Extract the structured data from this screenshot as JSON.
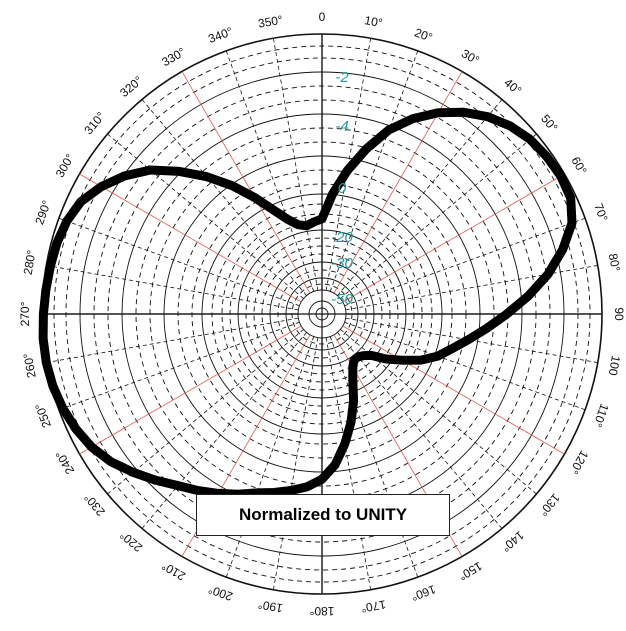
{
  "chart_data": {
    "type": "polar-line",
    "angle_labels": [
      "0",
      "10°",
      "20°",
      "30°",
      "40°",
      "50°",
      "60°",
      "70°",
      "80°",
      "90",
      "100",
      "110°",
      "120°",
      "130°",
      "140°",
      "150°",
      "160°",
      "170°",
      "180°",
      "190°",
      "200°",
      "210°",
      "220°",
      "230°",
      "240°",
      "250°",
      "260°",
      "270°",
      "280°",
      "290°",
      "300°",
      "310°",
      "320°",
      "330°",
      "340°",
      "350°"
    ],
    "radial_labels": [
      "-2",
      "-4",
      "0",
      "-20",
      "-30",
      "-50"
    ],
    "annotation": "Normalized to UNITY",
    "series": [
      {
        "points": [
          [
            0,
            0.34
          ],
          [
            5,
            0.43
          ],
          [
            10,
            0.52
          ],
          [
            15,
            0.61
          ],
          [
            20,
            0.7
          ],
          [
            25,
            0.77
          ],
          [
            30,
            0.83
          ],
          [
            35,
            0.88
          ],
          [
            40,
            0.92
          ],
          [
            45,
            0.95
          ],
          [
            50,
            0.97
          ],
          [
            55,
            0.98
          ],
          [
            60,
            0.985
          ],
          [
            65,
            0.98
          ],
          [
            70,
            0.95
          ],
          [
            75,
            0.89
          ],
          [
            80,
            0.82
          ],
          [
            85,
            0.74
          ],
          [
            90,
            0.66
          ],
          [
            95,
            0.59
          ],
          [
            100,
            0.53
          ],
          [
            105,
            0.48
          ],
          [
            110,
            0.44
          ],
          [
            115,
            0.39
          ],
          [
            120,
            0.33
          ],
          [
            125,
            0.28
          ],
          [
            130,
            0.23
          ],
          [
            135,
            0.21
          ],
          [
            140,
            0.2
          ],
          [
            145,
            0.2
          ],
          [
            150,
            0.22
          ],
          [
            155,
            0.26
          ],
          [
            160,
            0.33
          ],
          [
            165,
            0.4
          ],
          [
            170,
            0.47
          ],
          [
            175,
            0.54
          ],
          [
            180,
            0.59
          ],
          [
            185,
            0.62
          ],
          [
            190,
            0.64
          ],
          [
            195,
            0.66
          ],
          [
            200,
            0.68
          ],
          [
            205,
            0.71
          ],
          [
            210,
            0.74
          ],
          [
            215,
            0.77
          ],
          [
            220,
            0.8
          ],
          [
            225,
            0.84
          ],
          [
            230,
            0.88
          ],
          [
            235,
            0.92
          ],
          [
            240,
            0.95
          ],
          [
            245,
            0.97
          ],
          [
            250,
            0.985
          ],
          [
            255,
            0.995
          ],
          [
            260,
            1.0
          ],
          [
            265,
            1.0
          ],
          [
            270,
            0.995
          ],
          [
            275,
            0.99
          ],
          [
            280,
            0.985
          ],
          [
            285,
            0.98
          ],
          [
            290,
            0.97
          ],
          [
            295,
            0.95
          ],
          [
            300,
            0.91
          ],
          [
            305,
            0.86
          ],
          [
            310,
            0.8
          ],
          [
            315,
            0.72
          ],
          [
            320,
            0.64
          ],
          [
            325,
            0.56
          ],
          [
            330,
            0.48
          ],
          [
            335,
            0.41
          ],
          [
            340,
            0.36
          ],
          [
            345,
            0.33
          ],
          [
            350,
            0.32
          ],
          [
            355,
            0.33
          ]
        ]
      }
    ],
    "colors": {
      "grid": "#111111",
      "accent_grid": "#e05a50",
      "radial_label": "#1a9a9a",
      "trace": "#000000"
    }
  }
}
